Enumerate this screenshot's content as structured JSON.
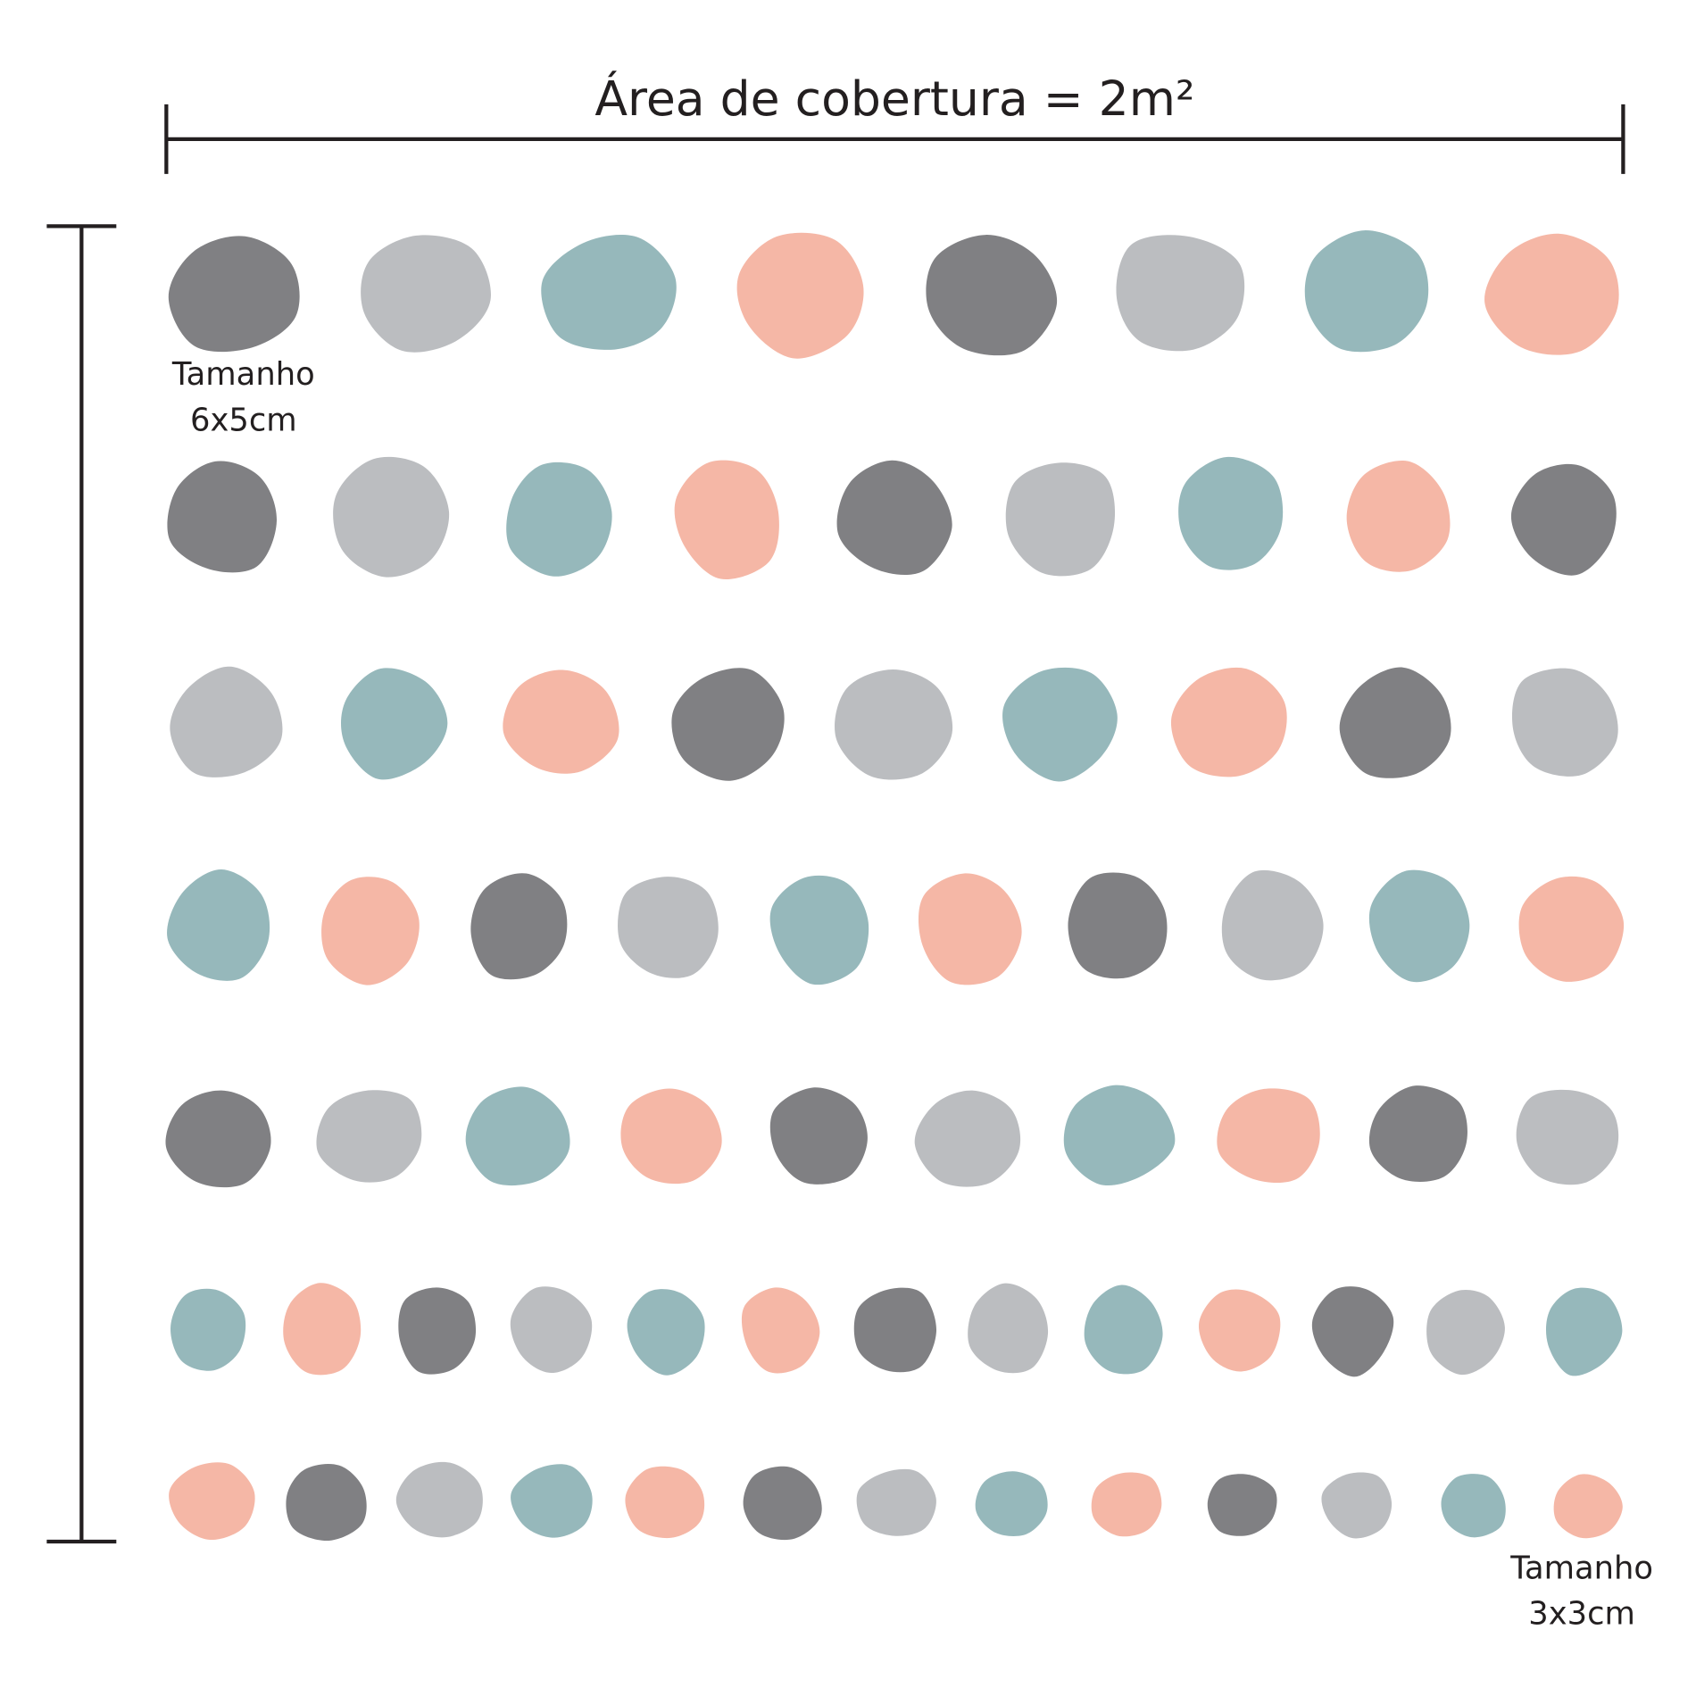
{
  "header": {
    "title": "Área de cobertura = 2m²"
  },
  "labels": [
    {
      "name": "Tamanho",
      "size": "6x5cm"
    },
    {
      "name": "Tamanho",
      "size": "3x3cm"
    }
  ]
}
